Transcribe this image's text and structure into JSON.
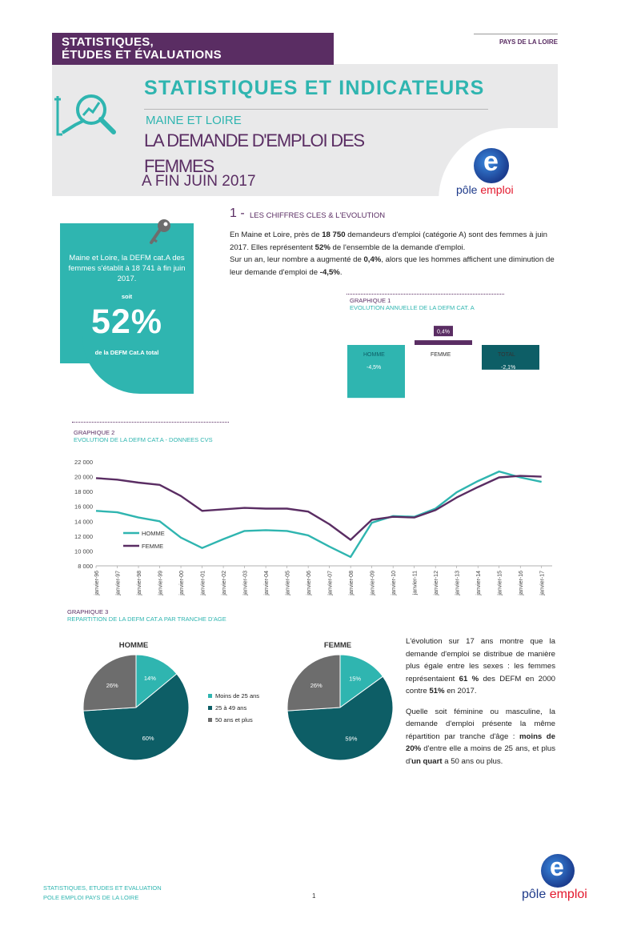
{
  "header": {
    "brand_line1": "STATISTIQUES,",
    "brand_line2": "ÉTUDES ET ÉVALUATIONS",
    "region": "PAYS DE LA LOIRE",
    "main_title": "STATISTIQUES ET INDICATEURS",
    "department": "MAINE ET LOIRE",
    "doc_title": "LA DEMANDE D'EMPLOI DES FEMMES",
    "date": "A FIN JUIN 2017"
  },
  "logo": {
    "text_pole": "pôle",
    "text_emploi": "emploi",
    "letter": "e"
  },
  "kpi": {
    "text": "Maine et Loire, la DEFM cat.A des femmes s'établit à 18 741 à fin juin 2017.",
    "soit": "soit",
    "value": "52%",
    "caption": "de la DEFM Cat.A total"
  },
  "section1": {
    "number": "1 -",
    "title": "LES CHIFFRES CLES & L'EVOLUTION",
    "p1_a": "En Maine et Loire, près de ",
    "p1_b": "18 750",
    "p1_c": " demandeurs d'emploi (catégorie A) sont des femmes à juin 2017. Elles représentent ",
    "p1_d": "52%",
    "p1_e": " de l'ensemble de la demande d'emploi.",
    "p2_a": "Sur un an, leur nombre a augmenté de ",
    "p2_b": "0,4%",
    "p2_c": ", alors que les hommes affichent une diminution de leur demande d'emploi de ",
    "p2_d": "-4,5%",
    "p2_e": "."
  },
  "graph1": {
    "title": "GRAPHIQUE 1",
    "subtitle": "EVOLUTION ANNUELLE DE LA DEFM CAT. A"
  },
  "graph2": {
    "title": "GRAPHIQUE 2",
    "subtitle": "EVOLUTION DE LA DEFM CAT.A - DONNEES CVS"
  },
  "graph3": {
    "title": "GRAPHIQUE 3",
    "subtitle": "REPARTITION DE LA DEFM CAT.A PAR TRANCHE D'AGE",
    "legend": [
      "Moins de 25 ans",
      "25 à 49 ans",
      "50 ans et plus"
    ]
  },
  "right_text": {
    "p1_a": "L'évolution sur 17 ans montre que la demande d'emploi se distribue de manière plus égale entre les sexes : les femmes représentaient ",
    "p1_b": "61 %",
    "p1_c": " des DEFM en 2000 contre ",
    "p1_d": "51%",
    "p1_e": " en 2017.",
    "p2_a": "Quelle soit féminine ou masculine, la demande d'emploi présente la même répartition par tranche d'âge : ",
    "p2_b": "moins de 20%",
    "p2_c": " d'entre elle a moins de 25 ans, et plus d'",
    "p2_d": "un quart",
    "p2_e": " a 50 ans ou plus."
  },
  "footer": {
    "line1": "STATISTIQUES, ETUDES ET EVALUATION",
    "line2": "POLE EMPLOI PAYS DE LA LOIRE",
    "page": "1"
  },
  "colors": {
    "purple": "#5a2d63",
    "teal": "#2fb5b0",
    "dark_teal": "#0d5e66",
    "grey": "#6d6d6d"
  },
  "chart_data": [
    {
      "type": "bar",
      "categories": [
        "HOMME",
        "FEMME",
        "TOTAL"
      ],
      "values": [
        -4.5,
        0.4,
        -2.1
      ],
      "labels": [
        "-4,5%",
        "0,4%",
        "-2,1%"
      ],
      "colors": [
        "#2fb5b0",
        "#5a2d63",
        "#0d5e66"
      ]
    },
    {
      "type": "line",
      "x": [
        "janvier-96",
        "janvier-97",
        "janvier-98",
        "janvier-99",
        "janvier-00",
        "janvier-01",
        "janvier-02",
        "janvier-03",
        "janvier-04",
        "janvier-05",
        "janvier-06",
        "janvier-07",
        "janvier-08",
        "janvier-09",
        "janvier-10",
        "janvier-11",
        "janvier-12",
        "janvier-13",
        "janvier-14",
        "janvier-15",
        "janvier-16",
        "janvier-17"
      ],
      "ylim": [
        8000,
        22000
      ],
      "yticks": [
        "8 000",
        "10 000",
        "12 000",
        "14 000",
        "16 000",
        "18 000",
        "20 000",
        "22 000"
      ],
      "legend_position": "left-middle",
      "series": [
        {
          "name": "HOMME",
          "color": "#2fb5b0",
          "values": [
            15400,
            15200,
            14500,
            14000,
            11800,
            10400,
            11600,
            12700,
            12800,
            12700,
            12100,
            10600,
            9200,
            13800,
            14700,
            14600,
            15700,
            17900,
            19400,
            20700,
            19900,
            19300
          ]
        },
        {
          "name": "FEMME",
          "color": "#5a2d63",
          "values": [
            19800,
            19600,
            19200,
            18900,
            17400,
            15400,
            15600,
            15800,
            15700,
            15700,
            15300,
            13600,
            11500,
            14200,
            14600,
            14500,
            15500,
            17200,
            18600,
            19900,
            20100,
            20000
          ]
        }
      ]
    },
    {
      "type": "pie",
      "title": "HOMME",
      "labels": [
        "Moins de 25 ans",
        "25 à 49 ans",
        "50 ans et plus"
      ],
      "values": [
        14,
        60,
        26
      ],
      "value_labels": [
        "14%",
        "60%",
        "26%"
      ],
      "colors": [
        "#2fb5b0",
        "#0d5e66",
        "#6d6d6d"
      ]
    },
    {
      "type": "pie",
      "title": "FEMME",
      "labels": [
        "Moins de 25 ans",
        "25 à 49 ans",
        "50 ans et plus"
      ],
      "values": [
        15,
        59,
        26
      ],
      "value_labels": [
        "15%",
        "59%",
        "26%"
      ],
      "colors": [
        "#2fb5b0",
        "#0d5e66",
        "#6d6d6d"
      ]
    }
  ]
}
